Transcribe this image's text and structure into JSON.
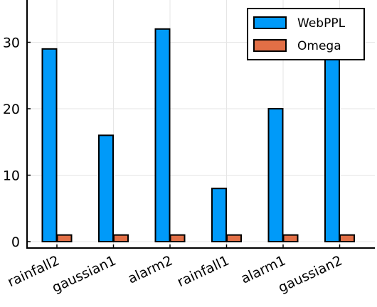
{
  "chart_data": {
    "type": "bar",
    "categories": [
      "rainfall2",
      "gaussian1",
      "alarm2",
      "rainfall1",
      "alarm1",
      "gaussian2"
    ],
    "series": [
      {
        "name": "WebPPL",
        "values": [
          29,
          16,
          32,
          8,
          20,
          35
        ],
        "color": "#009af9"
      },
      {
        "name": "Omega",
        "values": [
          1,
          1,
          1,
          1,
          1,
          1
        ],
        "color": "#e26f46"
      }
    ],
    "yticks": [
      "0",
      "10",
      "20",
      "30"
    ],
    "ylim": [
      -1,
      38
    ],
    "grid": true,
    "legend_position": "top-right"
  }
}
